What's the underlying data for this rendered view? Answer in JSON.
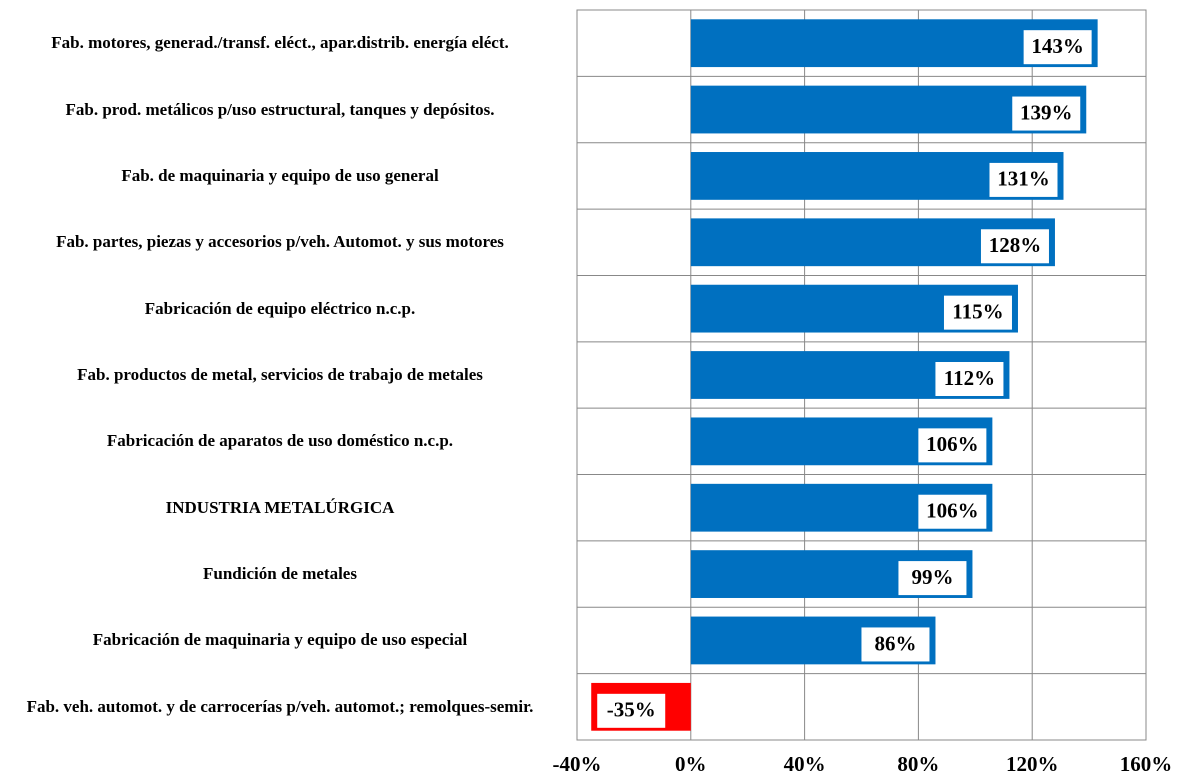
{
  "chart_data": {
    "type": "barh",
    "categories": [
      "Fab. motores, generad./transf. eléct., apar.distrib. energía eléct.",
      "Fab. prod. metálicos p/uso estructural, tanques y depósitos.",
      "Fab. de maquinaria y equipo de uso general",
      "Fab. partes, piezas y accesorios p/veh. Automot. y sus motores",
      "Fabricación de equipo eléctrico n.c.p.",
      "Fab. productos de metal, servicios de trabajo de metales",
      "Fabricación de aparatos de uso doméstico n.c.p.",
      "INDUSTRIA METALÚRGICA",
      "Fundición de metales",
      "Fabricación de maquinaria y equipo de uso especial",
      "Fab. veh. automot. y de carrocerías p/veh. automot.; remolques-semir."
    ],
    "values": [
      143,
      139,
      131,
      128,
      115,
      112,
      106,
      106,
      99,
      86,
      -35
    ],
    "value_labels": [
      "143%",
      "139%",
      "131%",
      "128%",
      "115%",
      "112%",
      "106%",
      "106%",
      "99%",
      "86%",
      "-35%"
    ],
    "colors": [
      "#0070c0",
      "#0070c0",
      "#0070c0",
      "#0070c0",
      "#0070c0",
      "#0070c0",
      "#0070c0",
      "#0070c0",
      "#0070c0",
      "#0070c0",
      "#ff0000"
    ],
    "xlim": [
      -40,
      160
    ],
    "xticks": [
      {
        "value": -40,
        "label": "-40%"
      },
      {
        "value": 0,
        "label": "0%"
      },
      {
        "value": 40,
        "label": "40%"
      },
      {
        "value": 80,
        "label": "80%"
      },
      {
        "value": 120,
        "label": "120%"
      },
      {
        "value": 160,
        "label": "160%"
      }
    ],
    "grid": true
  }
}
